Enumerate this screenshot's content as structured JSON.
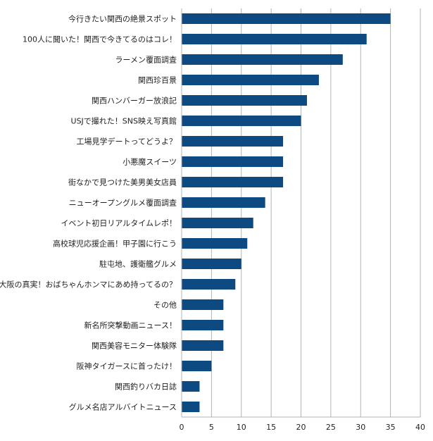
{
  "chart_data": {
    "type": "bar",
    "orientation": "horizontal",
    "categories": [
      "今行きたい関西の絶景スポット",
      "100人に聞いた！関西で今きてるのはコレ！",
      "ラーメン覆面調査",
      "関西珍百景",
      "関西ハンバーガー放浪記",
      "USJで撮れた！SNS映え写真館",
      "工場見学デートってどうよ？",
      "小悪魔スイーツ",
      "街なかで見つけた美男美女店員",
      "ニューオープングルメ覆面調査",
      "イベント初日リアルタイムレポ！",
      "高校球児応援企画！甲子園に行こう",
      "駐屯地、護衛艦グルメ",
      "大阪の真実！おばちゃんホンマにあめ持ってるの？",
      "その他",
      "新名所突撃動画ニュース！",
      "関西美容モニター体験隊",
      "阪神タイガースに首ったけ！",
      "関西釣りバカ日誌",
      "グルメ名店アルバイトニュース"
    ],
    "values": [
      35,
      31,
      27,
      23,
      21,
      20,
      17,
      17,
      17,
      14,
      12,
      11,
      10,
      9,
      7,
      7,
      7,
      5,
      3,
      3
    ],
    "xlim": [
      0,
      40
    ],
    "xticks": [
      0,
      5,
      10,
      15,
      20,
      25,
      30,
      35,
      40
    ],
    "grid": true,
    "bar_color": "#0d4a82",
    "grid_color": "#b3b3b3",
    "title": "",
    "xlabel": "",
    "ylabel": ""
  }
}
